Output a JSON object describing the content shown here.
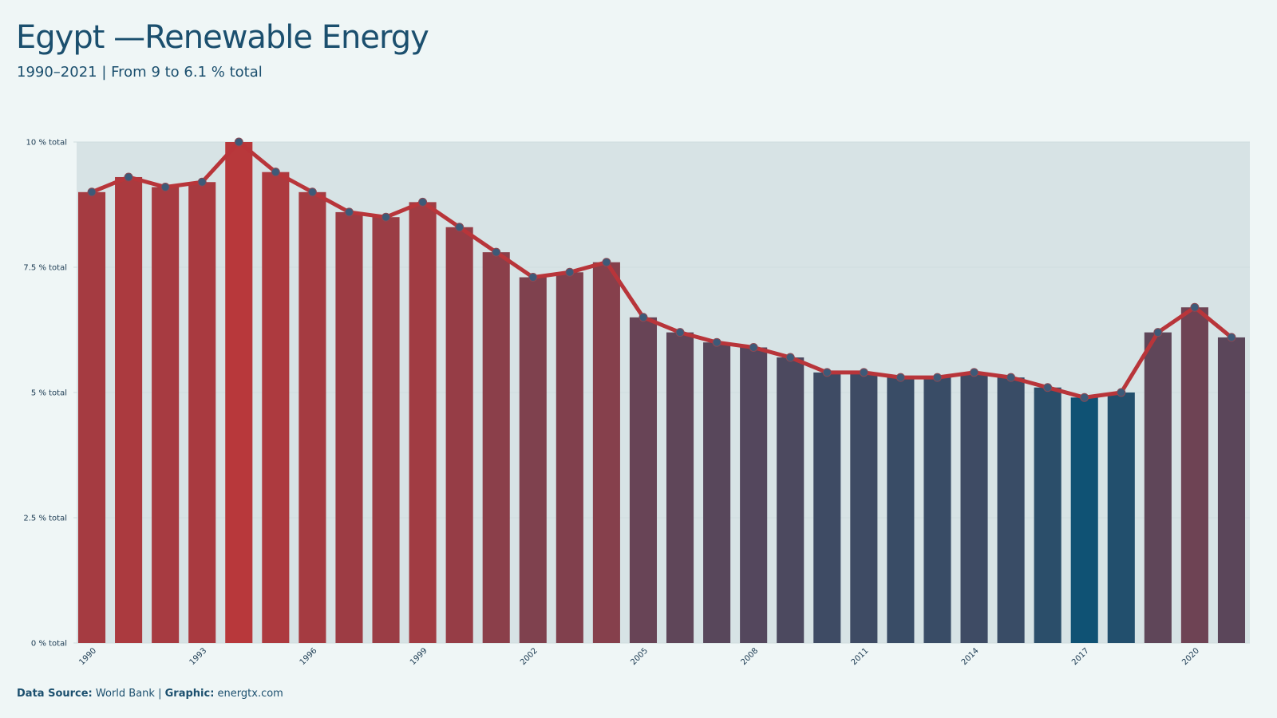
{
  "header": {
    "title": "Egypt —Renewable Energy",
    "subtitle": "1990–2021 | From 9 to 6.1 % total"
  },
  "footer": {
    "source_label": "Data Source:",
    "source_value": "World Bank",
    "sep": "|",
    "graphic_label": "Graphic:",
    "graphic_value": "energtx.com"
  },
  "chart_data": {
    "type": "bar",
    "title": "Egypt —Renewable Energy",
    "subtitle": "1990–2021 | From 9 to 6.1 % total",
    "xlabel": "",
    "ylabel": "",
    "ylim": [
      0,
      10
    ],
    "yticks": [
      0,
      2.5,
      5,
      7.5,
      10
    ],
    "ytick_labels": [
      "0 % total",
      "2.5 % total",
      "5 % total",
      "7.5 % total",
      "10 % total"
    ],
    "x": [
      1990,
      1991,
      1992,
      1993,
      1994,
      1995,
      1996,
      1997,
      1998,
      1999,
      2000,
      2001,
      2002,
      2003,
      2004,
      2005,
      2006,
      2007,
      2008,
      2009,
      2010,
      2011,
      2012,
      2013,
      2014,
      2015,
      2016,
      2017,
      2018,
      2019,
      2020,
      2021
    ],
    "xtick_labels": [
      "1990",
      "1993",
      "1996",
      "1999",
      "2002",
      "2005",
      "2008",
      "2011",
      "2014",
      "2017",
      "2020"
    ],
    "values": [
      9.0,
      9.3,
      9.1,
      9.2,
      10.0,
      9.4,
      9.0,
      8.6,
      8.5,
      8.8,
      8.3,
      7.8,
      7.3,
      7.4,
      7.6,
      6.5,
      6.2,
      6.0,
      5.9,
      5.7,
      5.4,
      5.4,
      5.3,
      5.3,
      5.4,
      5.3,
      5.1,
      4.9,
      5.0,
      6.2,
      6.7,
      6.1
    ],
    "grid": true,
    "overlay_line": true,
    "colors": {
      "high": "#b8383b",
      "low": "#0f5274",
      "line": "#b8353a",
      "marker": "#3d5a78",
      "background": "#eff6f6"
    }
  }
}
